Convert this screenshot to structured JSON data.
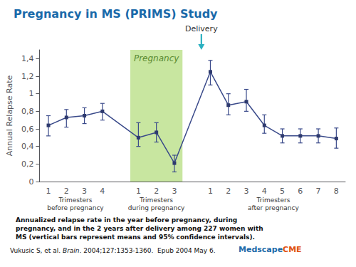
{
  "chart_data": {
    "type": "line",
    "title": "Pregnancy in MS (PRIMS) Study",
    "title_color": "#1a6aaa",
    "y_label": "Annual Relapse Rate",
    "categories": [
      "1",
      "2",
      "3",
      "4",
      null,
      "1",
      "2",
      "3",
      null,
      "1",
      "2",
      "3",
      "4",
      "5",
      "6",
      "7",
      "8"
    ],
    "values": [
      0.64,
      0.73,
      0.75,
      0.8,
      null,
      0.5,
      0.56,
      0.21,
      null,
      1.25,
      0.87,
      0.91,
      0.64,
      0.52,
      0.52,
      0.52,
      0.49
    ],
    "err_low": [
      0.12,
      0.11,
      0.09,
      0.1,
      null,
      0.1,
      0.11,
      0.1,
      null,
      0.15,
      0.11,
      0.11,
      0.09,
      0.08,
      0.08,
      0.08,
      0.11
    ],
    "err_high": [
      0.11,
      0.09,
      0.09,
      0.09,
      null,
      0.17,
      0.11,
      0.09,
      null,
      0.13,
      0.13,
      0.14,
      0.12,
      0.08,
      0.08,
      0.08,
      0.12
    ],
    "color": "#3a4a8a",
    "marker": "square",
    "marker_color": "#2e3a6e",
    "ylim": [
      0,
      1.5
    ],
    "yticks": [
      0,
      {
        "value": 0.2,
        "label": "0,2"
      },
      {
        "value": 0.4,
        "label": "0,4"
      },
      {
        "value": 0.6,
        "label": "0,6"
      },
      {
        "value": 0.8,
        "label": "0,8"
      },
      1,
      {
        "value": 1.2,
        "label": "1,2"
      },
      {
        "value": 1.4,
        "label": "1,4"
      }
    ],
    "grid": false,
    "groups": [
      {
        "label": "Trimesters\nbefore pregnancy"
      },
      {
        "label": "Trimesters\nduring pregnancy",
        "shade_label": "Pregnancy",
        "shade_color": "#c8e6a0",
        "shade_label_color": "#5a8a30"
      },
      {
        "label": "Trimesters\nafter pregnancy",
        "arrow_label": "Delivery",
        "arrow_color": "#2ab0c0"
      }
    ],
    "footnote": [
      "Annualized relapse rate in the year before pregnancy, during",
      "pregnancy, and in the 2 years after delivery among 227 women with",
      "MS (vertical bars represent means and 95% confidence intervals)."
    ],
    "citation": [
      {
        "text": "Vukusic S, et al. "
      },
      {
        "text": "Brain",
        "style": "italic"
      },
      {
        "text": ". 2004;127:1353-1360.  Epub 2004 May 6."
      }
    ],
    "logo": [
      {
        "text": "Medscape",
        "color": "#1a6aaa"
      },
      {
        "text": "CME",
        "color": "#e05010"
      }
    ]
  }
}
